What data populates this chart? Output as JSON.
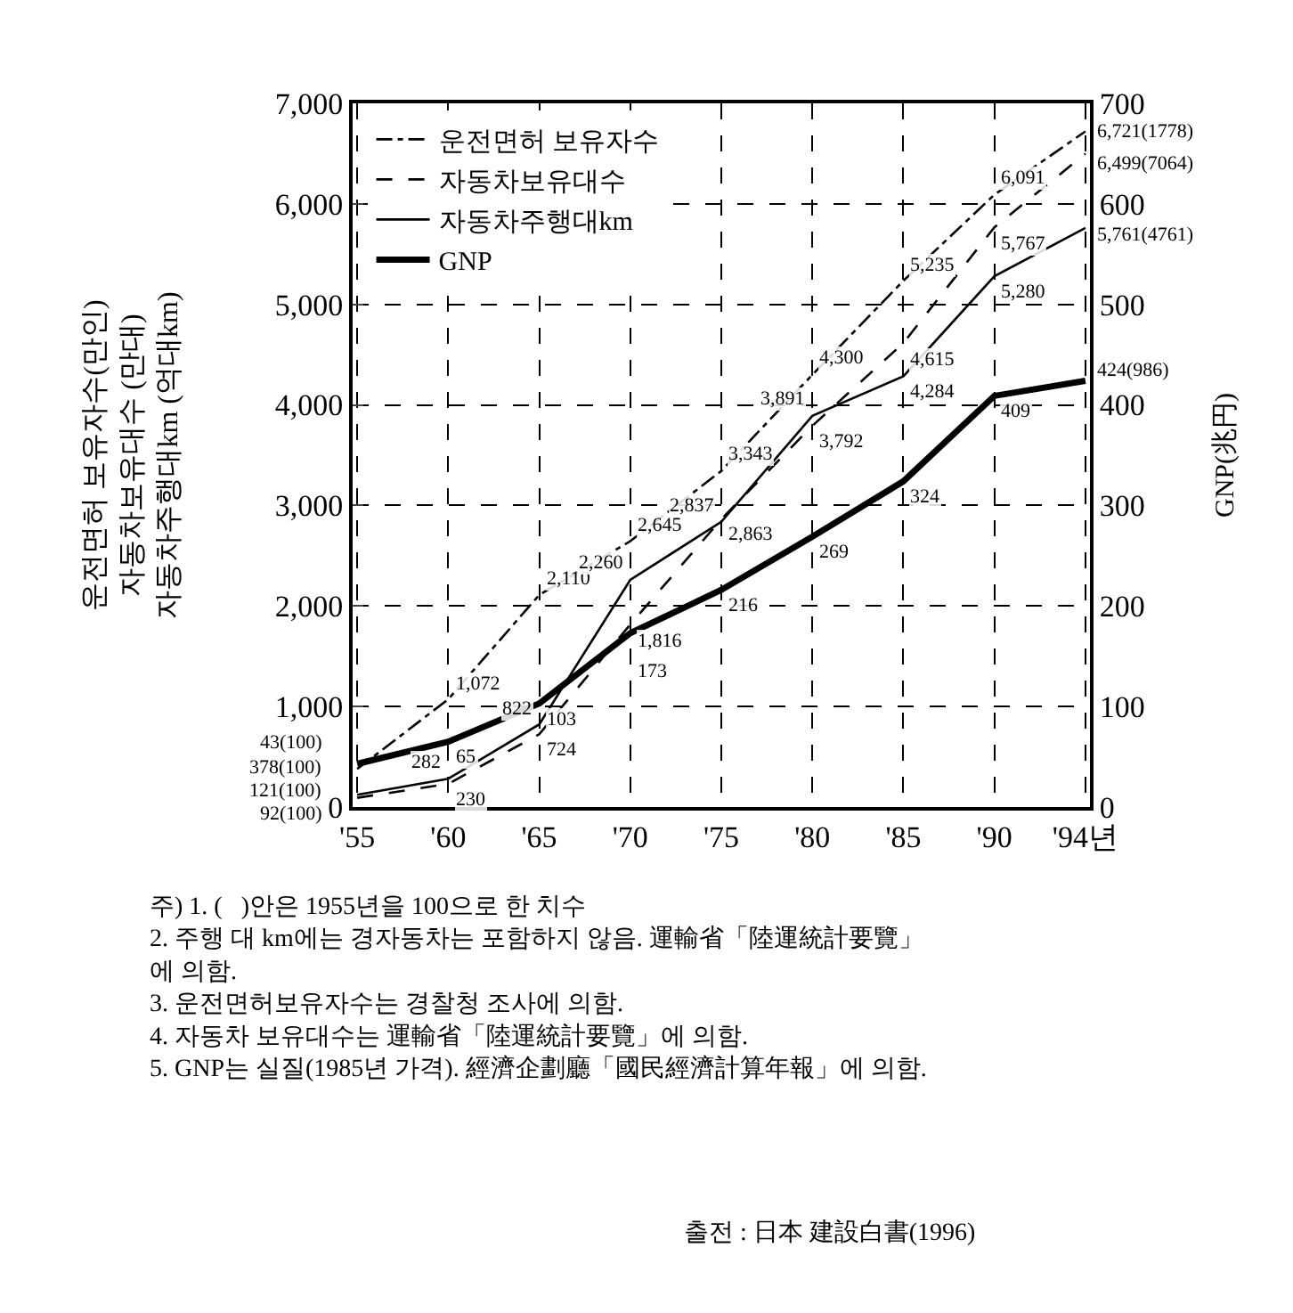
{
  "chart_data": {
    "type": "line",
    "categories": [
      "'55",
      "'60",
      "'65",
      "'70",
      "'75",
      "'80",
      "'85",
      "'90",
      "'94년"
    ],
    "series": [
      {
        "name": "운전면허 보유자수",
        "color": "#000000",
        "line_style": "dashdot",
        "values": [
          378,
          1072,
          2110,
          2645,
          3343,
          4300,
          5235,
          6091,
          6721
        ],
        "value_labels": [
          "378(100)",
          "1,072",
          "2,110",
          "2,645",
          "3,343",
          "4,300",
          "5,235",
          "6,091",
          "6,721(1778)"
        ]
      },
      {
        "name": "자동차보유대수",
        "color": "#000000",
        "line_style": "dashed",
        "values": [
          92,
          230,
          724,
          1816,
          2863,
          3792,
          4615,
          5767,
          6499
        ],
        "value_labels": [
          "92(100)",
          "230",
          "724",
          "1,816",
          "2,863",
          "3,792",
          "4,615",
          "5,767",
          "6,499(7064)"
        ]
      },
      {
        "name": "자동차주행대km",
        "color": "#000000",
        "line_style": "solid",
        "values": [
          121,
          282,
          822,
          2260,
          2837,
          3891,
          4284,
          5280,
          5761
        ],
        "value_labels": [
          "121(100)",
          "282",
          "822",
          "2,260",
          "2,837",
          "3,891",
          "4,284",
          "5,280",
          "5,761(4761)"
        ]
      },
      {
        "name": "GNP",
        "color": "#000000",
        "line_style": "solid",
        "axis": "y2",
        "values": [
          43,
          65,
          103,
          173,
          216,
          269,
          324,
          409,
          424
        ],
        "value_labels": [
          "43(100)",
          "65",
          "103",
          "173",
          "216",
          "269",
          "324",
          "409",
          "424(986)"
        ]
      }
    ],
    "ylabel": "운전면허 보유자수(만인)\n자동차보유대수 (만대)\n자동차주행대km (억대km)",
    "y2label": "GNP(兆円)",
    "ylim": [
      0,
      7000
    ],
    "yticks": [
      0,
      {
        "value": 1000,
        "label": "1,000"
      },
      {
        "value": 2000,
        "label": "2,000"
      },
      {
        "value": 3000,
        "label": "3,000"
      },
      {
        "value": 4000,
        "label": "4,000"
      },
      {
        "value": 5000,
        "label": "5,000"
      },
      {
        "value": 6000,
        "label": "6,000"
      },
      {
        "value": 7000,
        "label": "7,000"
      }
    ],
    "y2lim": [
      0,
      700
    ],
    "y2ticks": [
      0,
      100,
      200,
      300,
      400,
      500,
      600,
      700
    ],
    "grid": true,
    "legend": "top left",
    "marker": "none",
    "annotations": [
      "주) 1. (   )안은 1955년을 100으로 한 치수\n2. 주행 대 km에는 경자동차는 포함하지 않음. 運輸省「陸運統計要覽」\n에 의함.\n3. 운전면허보유자수는 경찰청 조사에 의함.\n4. 자동차 보유대수는 運輸省「陸運統計要覽」에 의함.\n5. GNP는 실질(1985년 가격). 經濟企劃廳「國民經濟計算年報」에 의함.",
      "출전 : 日本 建設白書(1996)"
    ]
  }
}
